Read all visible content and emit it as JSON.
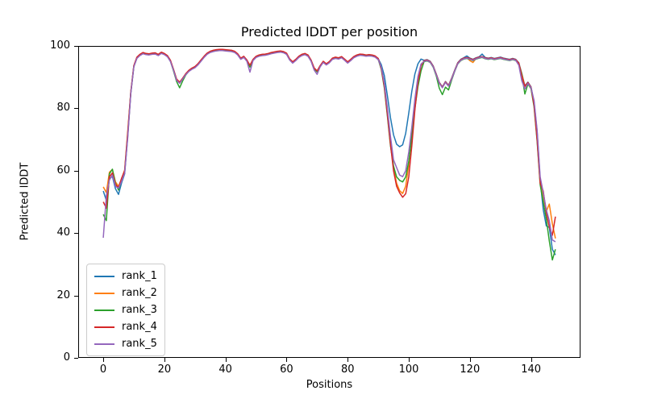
{
  "figure": {
    "background": "#ffffff",
    "spine_color": "#000000"
  },
  "chart_data": {
    "type": "line",
    "title": "Predicted lDDT per position",
    "xlabel": "Positions",
    "ylabel": "Predicted lDDT",
    "xlim": [
      -8.2,
      156.2
    ],
    "ylim": [
      0,
      100
    ],
    "xticks": [
      0,
      20,
      40,
      60,
      80,
      100,
      120,
      140
    ],
    "yticks": [
      0,
      20,
      40,
      60,
      80,
      100
    ],
    "grid": false,
    "legend_position": "lower left",
    "line_width": 1.5,
    "x": [
      0,
      1,
      2,
      3,
      4,
      5,
      6,
      7,
      8,
      9,
      10,
      11,
      12,
      13,
      14,
      15,
      16,
      17,
      18,
      19,
      20,
      21,
      22,
      23,
      24,
      25,
      26,
      27,
      28,
      29,
      30,
      31,
      32,
      33,
      34,
      35,
      36,
      37,
      38,
      39,
      40,
      41,
      42,
      43,
      44,
      45,
      46,
      47,
      48,
      49,
      50,
      51,
      52,
      53,
      54,
      55,
      56,
      57,
      58,
      59,
      60,
      61,
      62,
      63,
      64,
      65,
      66,
      67,
      68,
      69,
      70,
      71,
      72,
      73,
      74,
      75,
      76,
      77,
      78,
      79,
      80,
      81,
      82,
      83,
      84,
      85,
      86,
      87,
      88,
      89,
      90,
      91,
      92,
      93,
      94,
      95,
      96,
      97,
      98,
      99,
      100,
      101,
      102,
      103,
      104,
      105,
      106,
      107,
      108,
      109,
      110,
      111,
      112,
      113,
      114,
      115,
      116,
      117,
      118,
      119,
      120,
      121,
      122,
      123,
      124,
      125,
      126,
      127,
      128,
      129,
      130,
      131,
      132,
      133,
      134,
      135,
      136,
      137,
      138,
      139,
      140,
      141,
      142,
      143,
      144,
      145,
      146,
      147,
      148
    ],
    "series": [
      {
        "name": "rank_1",
        "color": "#1f77b4",
        "values": [
          53.5,
          50.5,
          57.5,
          58.2,
          54.2,
          52.4,
          56.1,
          59.0,
          71.0,
          85.0,
          93.5,
          96.3,
          97.2,
          97.8,
          97.5,
          97.4,
          97.6,
          97.7,
          97.2,
          97.9,
          97.5,
          96.8,
          95.3,
          92.4,
          89.3,
          88.2,
          89.6,
          91.0,
          92.1,
          92.8,
          93.3,
          94.2,
          95.4,
          96.6,
          97.6,
          98.2,
          98.5,
          98.7,
          98.8,
          98.8,
          98.7,
          98.6,
          98.5,
          98.2,
          97.4,
          96.0,
          96.6,
          95.4,
          93.4,
          95.6,
          96.6,
          97.0,
          97.2,
          97.3,
          97.5,
          97.8,
          98.0,
          98.2,
          98.3,
          98.1,
          97.6,
          95.8,
          94.8,
          95.6,
          96.6,
          97.2,
          97.5,
          97.0,
          95.4,
          92.9,
          91.9,
          93.6,
          95.0,
          94.2,
          94.9,
          96.0,
          96.3,
          96.1,
          96.5,
          95.7,
          94.8,
          95.6,
          96.5,
          97.0,
          97.3,
          97.2,
          97.0,
          97.1,
          97.0,
          96.7,
          95.9,
          94.0,
          90.5,
          84.0,
          77.0,
          71.5,
          68.5,
          67.7,
          68.3,
          72.0,
          78.5,
          85.5,
          91.0,
          94.3,
          95.8,
          95.4,
          95.6,
          95.1,
          93.6,
          91.0,
          88.3,
          86.9,
          88.6,
          87.4,
          89.6,
          92.2,
          94.6,
          95.7,
          96.2,
          96.8,
          96.1,
          95.7,
          96.2,
          96.5,
          97.4,
          96.3,
          96.1,
          96.3,
          96.0,
          96.2,
          96.4,
          96.1,
          95.9,
          95.7,
          96.0,
          95.7,
          94.6,
          91.2,
          87.2,
          88.4,
          86.9,
          82.0,
          72.5,
          57.0,
          47.5,
          42.3,
          41.8,
          34.8,
          33.0
        ]
      },
      {
        "name": "rank_2",
        "color": "#ff7f0e",
        "values": [
          54.8,
          53.0,
          59.5,
          60.4,
          56.4,
          55.0,
          57.4,
          60.2,
          72.5,
          85.2,
          93.6,
          96.2,
          97.1,
          97.7,
          97.4,
          97.3,
          97.5,
          97.6,
          97.1,
          97.8,
          97.4,
          96.7,
          95.2,
          92.3,
          89.2,
          88.3,
          89.5,
          90.9,
          92.0,
          92.7,
          93.2,
          94.1,
          95.3,
          96.5,
          97.5,
          98.1,
          98.4,
          98.6,
          98.7,
          98.7,
          98.6,
          98.5,
          98.4,
          98.1,
          97.3,
          95.9,
          96.5,
          95.3,
          93.6,
          95.5,
          96.5,
          96.9,
          97.1,
          97.2,
          97.4,
          97.7,
          97.9,
          98.1,
          98.2,
          98.0,
          97.5,
          95.7,
          94.7,
          95.5,
          96.5,
          97.1,
          97.4,
          96.9,
          95.3,
          92.8,
          91.8,
          93.5,
          94.9,
          94.1,
          94.8,
          95.9,
          96.2,
          96.0,
          96.4,
          95.6,
          94.7,
          95.5,
          96.4,
          96.9,
          97.2,
          97.1,
          96.9,
          97.0,
          96.9,
          96.6,
          95.8,
          93.0,
          87.5,
          79.0,
          69.5,
          61.0,
          56.0,
          53.6,
          52.7,
          55.0,
          62.0,
          72.0,
          82.0,
          89.8,
          94.0,
          95.2,
          95.4,
          94.9,
          93.4,
          90.8,
          88.1,
          86.7,
          88.4,
          87.2,
          89.4,
          92.0,
          94.4,
          95.5,
          96.0,
          96.2,
          95.3,
          94.7,
          96.0,
          96.3,
          96.5,
          96.1,
          95.9,
          96.1,
          95.8,
          96.0,
          96.2,
          95.9,
          95.7,
          95.5,
          95.8,
          95.5,
          94.4,
          91.0,
          87.0,
          88.2,
          86.7,
          81.5,
          71.0,
          56.5,
          52.0,
          47.0,
          49.3,
          43.0,
          38.3
        ]
      },
      {
        "name": "rank_3",
        "color": "#2ca02c",
        "values": [
          46.0,
          44.0,
          59.0,
          60.5,
          56.0,
          53.8,
          57.0,
          59.6,
          71.5,
          84.8,
          93.4,
          96.1,
          97.0,
          97.6,
          97.3,
          97.2,
          97.4,
          97.5,
          97.0,
          97.7,
          97.3,
          96.6,
          95.1,
          92.0,
          88.6,
          86.6,
          88.8,
          90.7,
          91.9,
          92.6,
          93.1,
          94.0,
          95.2,
          96.4,
          97.4,
          98.0,
          98.3,
          98.5,
          98.6,
          98.6,
          98.5,
          98.4,
          98.3,
          98.0,
          97.2,
          95.8,
          96.4,
          95.2,
          93.2,
          95.4,
          96.4,
          96.8,
          97.0,
          97.1,
          97.3,
          97.6,
          97.8,
          98.0,
          98.1,
          97.9,
          97.4,
          95.6,
          94.6,
          95.4,
          96.4,
          97.0,
          97.3,
          96.8,
          95.2,
          92.7,
          91.7,
          93.4,
          94.8,
          94.0,
          94.7,
          95.8,
          96.1,
          95.9,
          96.3,
          95.5,
          94.6,
          95.4,
          96.3,
          96.8,
          97.1,
          97.0,
          96.8,
          96.9,
          96.8,
          96.5,
          95.7,
          92.5,
          86.5,
          77.5,
          68.0,
          61.5,
          58.0,
          56.9,
          56.4,
          58.0,
          63.0,
          71.0,
          80.0,
          87.0,
          92.0,
          95.0,
          95.2,
          94.7,
          93.2,
          90.4,
          86.4,
          84.4,
          86.8,
          85.9,
          89.0,
          91.8,
          94.2,
          95.3,
          95.8,
          96.0,
          95.7,
          95.3,
          95.8,
          96.1,
          96.3,
          95.9,
          95.7,
          95.9,
          95.6,
          95.8,
          96.0,
          95.7,
          95.5,
          95.3,
          95.6,
          95.3,
          94.2,
          90.8,
          84.6,
          87.8,
          86.3,
          80.5,
          69.5,
          55.5,
          50.0,
          44.5,
          37.5,
          31.4,
          34.8
        ]
      },
      {
        "name": "rank_4",
        "color": "#d62728",
        "values": [
          50.0,
          48.0,
          58.0,
          59.3,
          55.6,
          54.6,
          57.6,
          60.0,
          72.0,
          85.1,
          93.7,
          96.4,
          97.3,
          97.9,
          97.6,
          97.5,
          97.7,
          97.8,
          97.3,
          98.0,
          97.6,
          96.9,
          95.4,
          92.5,
          89.4,
          88.4,
          89.7,
          91.1,
          92.2,
          92.9,
          93.4,
          94.3,
          95.5,
          96.7,
          97.7,
          98.3,
          98.6,
          98.8,
          98.9,
          98.9,
          98.8,
          98.7,
          98.6,
          98.3,
          97.5,
          96.1,
          96.7,
          95.5,
          93.8,
          95.7,
          96.7,
          97.1,
          97.3,
          97.4,
          97.6,
          97.9,
          98.1,
          98.3,
          98.4,
          98.2,
          97.7,
          95.9,
          94.9,
          95.7,
          96.7,
          97.3,
          97.6,
          97.1,
          95.5,
          93.0,
          92.0,
          93.7,
          95.1,
          94.3,
          95.0,
          96.1,
          96.4,
          96.2,
          96.6,
          95.8,
          94.9,
          95.7,
          96.6,
          97.1,
          97.4,
          97.3,
          97.1,
          97.2,
          97.1,
          96.8,
          96.0,
          92.8,
          87.0,
          78.0,
          68.5,
          60.0,
          55.0,
          52.9,
          51.5,
          52.6,
          58.0,
          68.0,
          79.5,
          88.5,
          93.6,
          95.3,
          95.5,
          95.0,
          93.5,
          90.9,
          88.2,
          86.8,
          88.5,
          87.3,
          89.5,
          92.1,
          94.5,
          95.6,
          96.1,
          96.3,
          96.0,
          95.6,
          96.1,
          96.4,
          96.6,
          96.2,
          96.0,
          96.2,
          95.9,
          96.1,
          96.3,
          96.0,
          95.8,
          95.6,
          95.9,
          95.6,
          94.5,
          90.3,
          87.1,
          88.3,
          86.8,
          81.0,
          70.0,
          56.0,
          53.5,
          46.5,
          42.0,
          39.3,
          45.3
        ]
      },
      {
        "name": "rank_5",
        "color": "#9467bd",
        "values": [
          38.5,
          52.0,
          57.0,
          58.6,
          55.0,
          54.4,
          56.6,
          59.2,
          70.5,
          84.6,
          93.3,
          96.0,
          96.9,
          97.5,
          97.2,
          97.1,
          97.3,
          97.4,
          96.9,
          97.6,
          97.2,
          96.5,
          95.0,
          92.2,
          89.0,
          88.0,
          89.4,
          90.8,
          91.8,
          92.5,
          93.0,
          93.9,
          95.1,
          96.3,
          97.3,
          97.9,
          98.2,
          98.4,
          98.5,
          98.5,
          98.4,
          98.3,
          98.2,
          97.9,
          97.1,
          95.7,
          96.3,
          95.1,
          91.6,
          95.3,
          96.3,
          96.7,
          96.9,
          97.0,
          97.2,
          97.5,
          97.7,
          97.9,
          98.0,
          97.8,
          97.3,
          95.5,
          94.5,
          95.3,
          96.3,
          96.9,
          97.2,
          96.7,
          95.1,
          92.3,
          90.9,
          93.3,
          94.7,
          93.9,
          94.6,
          95.7,
          96.0,
          95.8,
          96.2,
          95.4,
          94.5,
          95.3,
          96.2,
          96.7,
          97.0,
          96.9,
          96.7,
          96.8,
          96.7,
          96.4,
          95.6,
          93.2,
          88.0,
          80.0,
          71.0,
          63.5,
          61.0,
          58.6,
          58.1,
          60.0,
          66.0,
          74.0,
          83.0,
          90.2,
          94.2,
          95.1,
          95.3,
          94.8,
          93.3,
          90.7,
          88.0,
          86.6,
          88.3,
          87.1,
          89.3,
          91.9,
          94.3,
          95.4,
          95.9,
          96.1,
          95.8,
          95.4,
          95.9,
          96.2,
          96.4,
          96.0,
          95.8,
          96.0,
          95.7,
          95.9,
          96.1,
          95.8,
          95.6,
          95.4,
          95.7,
          95.4,
          93.8,
          88.8,
          86.2,
          88.0,
          86.6,
          82.5,
          73.0,
          58.0,
          53.0,
          47.5,
          44.0,
          37.8,
          37.2
        ]
      }
    ]
  }
}
